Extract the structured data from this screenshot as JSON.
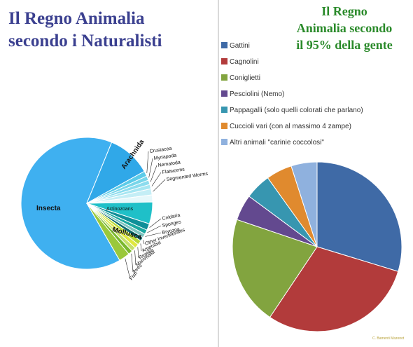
{
  "chart_data": [
    {
      "type": "pie",
      "title": "Il Regno Animalia secondo i Naturalisti",
      "slices": [
        {
          "label": "Insecta",
          "value": 60.0,
          "color": "#3fb0f0"
        },
        {
          "label": "Arachnida",
          "value": 10.0,
          "color": "#30a8e8"
        },
        {
          "label": "Crustacea",
          "value": 1.2,
          "color": "#5ccbe8"
        },
        {
          "label": "Myriapoda",
          "value": 1.0,
          "color": "#78d6ea"
        },
        {
          "label": "Nematoda",
          "value": 1.0,
          "color": "#8cdcee"
        },
        {
          "label": "Flatworms",
          "value": 1.0,
          "color": "#a6e6f2"
        },
        {
          "label": "Segmented Worms",
          "value": 1.4,
          "color": "#c4eef6"
        },
        {
          "label": "Actinozoans",
          "value": 1.6,
          "color": "#e6f8fb"
        },
        {
          "label": "Mollusca",
          "value": 5.0,
          "color": "#1fc0c8"
        },
        {
          "label": "Cnidaria",
          "value": 1.5,
          "color": "#0f8f99"
        },
        {
          "label": "Sponges",
          "value": 1.0,
          "color": "#1aa7a0"
        },
        {
          "label": "Bryozoa",
          "value": 0.9,
          "color": "#7cc4c0"
        },
        {
          "label": "Other Invertebrates",
          "value": 0.9,
          "color": "#0a6a6a"
        },
        {
          "label": "Amphibia",
          "value": 1.0,
          "color": "#b9d936"
        },
        {
          "label": "Reptilia",
          "value": 1.0,
          "color": "#e0e840"
        },
        {
          "label": "Mammalia",
          "value": 1.0,
          "color": "#c6e06a"
        },
        {
          "label": "Aves",
          "value": 1.0,
          "color": "#7ab82e"
        },
        {
          "label": "Fish",
          "value": 2.5,
          "color": "#9ac83a"
        }
      ]
    },
    {
      "type": "pie",
      "title": "Il Regno Animalia secondo il 95% della gente",
      "legend_position": "top",
      "slices": [
        {
          "label": "Gattini",
          "value": 30,
          "color": "#3f6aa6"
        },
        {
          "label": "Cagnolini",
          "value": 30,
          "color": "#b23b3b"
        },
        {
          "label": "Coniglietti",
          "value": 21,
          "color": "#82a43f"
        },
        {
          "label": "Pesciolini (Nemo)",
          "value": 5,
          "color": "#63498f"
        },
        {
          "label": "Pappagalli (solo quelli colorati che parlano)",
          "value": 5,
          "color": "#3796b0"
        },
        {
          "label": "Cuccioli vari (con al massimo 4 zampe)",
          "value": 5,
          "color": "#e08a2e"
        },
        {
          "label": "Altri animali \"carinie coccolosi\"",
          "value": 5,
          "color": "#8fb1de"
        }
      ]
    }
  ],
  "titles": {
    "left_line1": "Il Regno Animalia",
    "left_line2": "secondo i Naturalisti",
    "right_line1": "Il Regno",
    "right_line2": "Animalia secondo",
    "right_line3": "il 95% della gente"
  },
  "credit": "C. Bamenti Mazenot"
}
